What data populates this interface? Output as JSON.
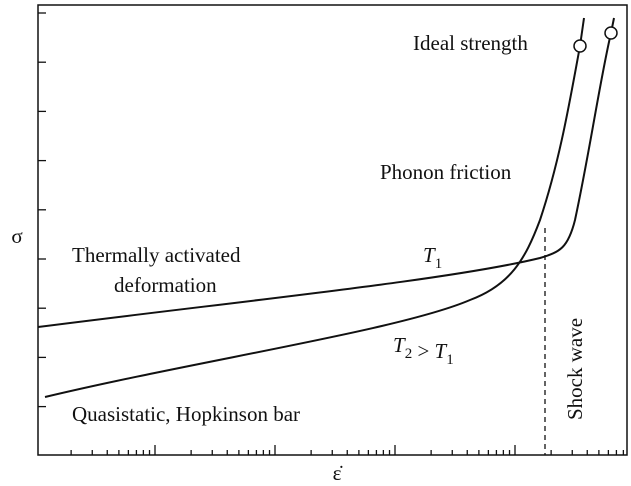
{
  "axes": {
    "y_label": "σ",
    "x_label": "ε̇"
  },
  "annotations": {
    "ideal_strength": "Ideal strength",
    "phonon_friction": "Phonon friction",
    "thermally_activated": [
      "Thermally activated",
      "deformation"
    ],
    "quasistatic": "Quasistatic, Hopkinson bar",
    "shock_wave": "Shock wave"
  },
  "curve_labels": [
    [
      {
        "text": "T",
        "sub": "1"
      }
    ],
    [
      {
        "text": "T",
        "sub": "2"
      },
      {
        "text": " > "
      },
      {
        "text": "T",
        "sub": "1"
      }
    ]
  ]
}
